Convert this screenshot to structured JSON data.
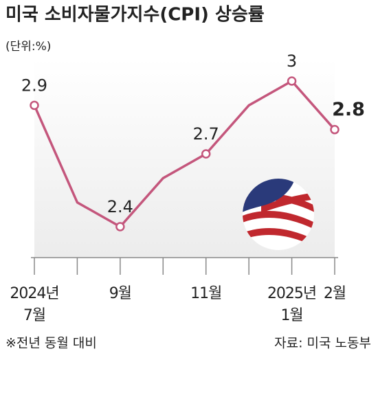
{
  "chart_data": {
    "type": "line",
    "title": "미국 소비자물가지수(CPI) 상승률",
    "subtitle": "(단위:%)",
    "categories": [
      "2024년\n7월",
      null,
      "9월",
      null,
      "11월",
      null,
      "2025년\n1월",
      "2월"
    ],
    "values": [
      2.9,
      2.5,
      2.4,
      2.6,
      2.7,
      2.9,
      3,
      2.8
    ],
    "value_labels": [
      "2.9",
      null,
      "2.4",
      null,
      "2.7",
      null,
      "3",
      "2.8"
    ],
    "color": "#c4567c",
    "note": "※전년 동월 대비",
    "source": "자료: 미국 노동부"
  }
}
